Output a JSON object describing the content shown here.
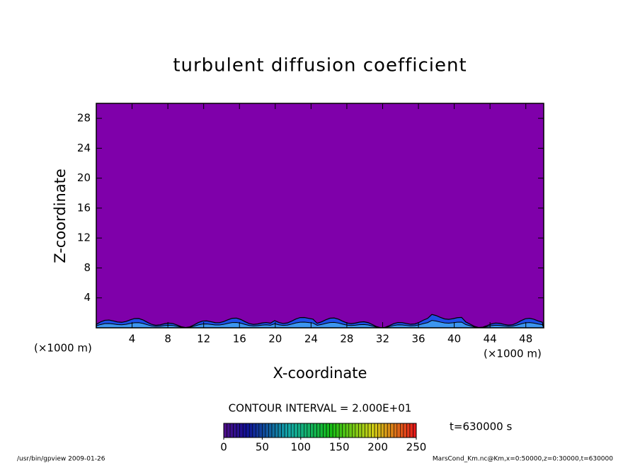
{
  "chart_data": {
    "type": "contour",
    "title": "turbulent diffusion coefficient",
    "xlabel": "X-coordinate",
    "ylabel": "Z-coordinate",
    "x_unit": "(×1000 m)",
    "y_unit": "(×1000 m)",
    "xlim": [
      0,
      50
    ],
    "xticks": [
      4,
      8,
      12,
      16,
      20,
      24,
      28,
      32,
      36,
      40,
      44,
      48
    ],
    "ylim": [
      0,
      30
    ],
    "yticks": [
      4,
      8,
      12,
      16,
      20,
      24,
      28
    ],
    "field_color": "#7f00aa",
    "contour_interval_label": "CONTOUR INTERVAL = 2.000E+01",
    "time_label": "t=630000 s",
    "colorbar": {
      "lim": [
        0,
        250
      ],
      "ticks": [
        0,
        50,
        100,
        150,
        200,
        250
      ]
    },
    "footer_left": "/usr/bin/gpview  2009-01-26",
    "footer_right": "MarsCond_Km.nc@Km,x=0:50000,z=0:30000,t=630000"
  }
}
